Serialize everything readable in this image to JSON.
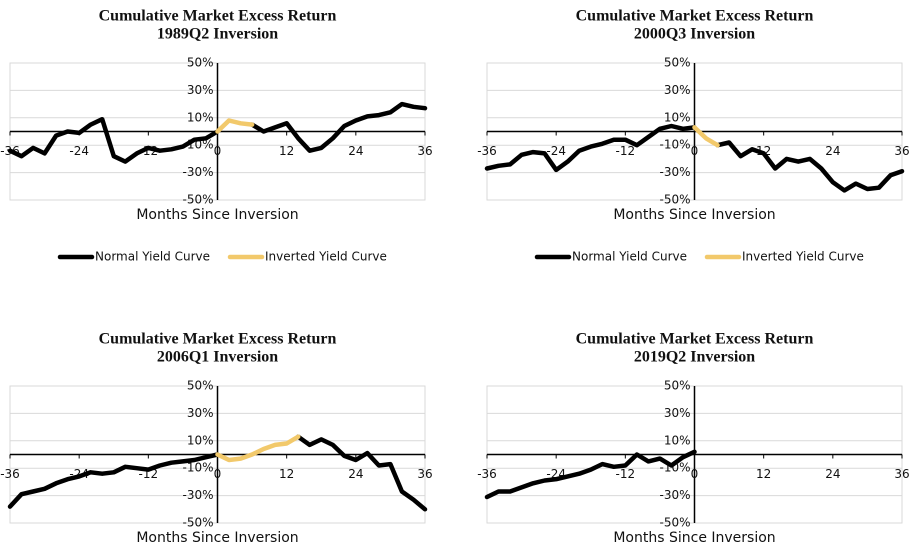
{
  "chart_data": [
    {
      "type": "line",
      "title": "Cumulative Market Excess Return",
      "subtitle": "1989Q2 Inversion",
      "xlabel": "Months Since Inversion",
      "x": [
        -36,
        -34,
        -32,
        -30,
        -28,
        -26,
        -24,
        -22,
        -20,
        -18,
        -16,
        -14,
        -12,
        -10,
        -8,
        -6,
        -4,
        -2,
        0,
        2,
        4,
        6,
        8,
        10,
        12,
        14,
        16,
        18,
        20,
        22,
        24,
        26,
        28,
        30,
        32,
        34,
        36
      ],
      "series": [
        {
          "name": "Normal Yield Curve",
          "color": "#000000",
          "values": [
            -14,
            -18,
            -12,
            -16,
            -3,
            0,
            -1,
            5,
            9,
            -18,
            -22,
            -16,
            -12,
            -14,
            -13,
            -11,
            -6,
            -5,
            0,
            null,
            null,
            5,
            0,
            3,
            6,
            -5,
            -14,
            -12,
            -5,
            4,
            8,
            11,
            12,
            14,
            20,
            18,
            17
          ]
        },
        {
          "name": "Inverted Yield Curve",
          "color": "#f2c96b",
          "values": [
            null,
            null,
            null,
            null,
            null,
            null,
            null,
            null,
            null,
            null,
            null,
            null,
            null,
            null,
            null,
            null,
            null,
            null,
            0,
            8,
            6,
            5,
            null,
            null,
            null,
            null,
            null,
            null,
            null,
            null,
            null,
            null,
            null,
            null,
            null,
            null,
            null
          ]
        }
      ],
      "xlim": [
        -36,
        36
      ],
      "xticks": [
        -36,
        -24,
        -12,
        0,
        12,
        24,
        36
      ],
      "ylim": [
        -50,
        50
      ],
      "yticks": [
        {
          "value": -50,
          "label": "-50%"
        },
        {
          "value": -30,
          "label": "-30%"
        },
        {
          "value": -10,
          "label": "-10%"
        },
        {
          "value": 10,
          "label": "10%"
        },
        {
          "value": 30,
          "label": "30%"
        },
        {
          "value": 50,
          "label": "50%"
        }
      ],
      "grid": true,
      "legend": "bottom"
    },
    {
      "type": "line",
      "title": "Cumulative Market Excess Return",
      "subtitle": "2000Q3 Inversion",
      "xlabel": "Months Since Inversion",
      "x": [
        -36,
        -34,
        -32,
        -30,
        -28,
        -26,
        -24,
        -22,
        -20,
        -18,
        -16,
        -14,
        -12,
        -10,
        -8,
        -6,
        -4,
        -2,
        0,
        2,
        4,
        6,
        8,
        10,
        12,
        14,
        16,
        18,
        20,
        22,
        24,
        26,
        28,
        30,
        32,
        34,
        36
      ],
      "series": [
        {
          "name": "Normal Yield Curve",
          "color": "#000000",
          "values": [
            -27,
            -25,
            -24,
            -17,
            -15,
            -16,
            -28,
            -22,
            -14,
            -11,
            -9,
            -6,
            -6,
            -10,
            -4,
            2,
            4,
            2,
            3,
            null,
            -10,
            -8,
            -18,
            -13,
            -16,
            -27,
            -20,
            -22,
            -20,
            -27,
            -37,
            -43,
            -38,
            -42,
            -41,
            -32,
            -29
          ]
        },
        {
          "name": "Inverted Yield Curve",
          "color": "#f2c96b",
          "values": [
            null,
            null,
            null,
            null,
            null,
            null,
            null,
            null,
            null,
            null,
            null,
            null,
            null,
            null,
            null,
            null,
            null,
            null,
            3,
            -5,
            -10,
            null,
            null,
            null,
            null,
            null,
            null,
            null,
            null,
            null,
            null,
            null,
            null,
            null,
            null,
            null,
            null
          ]
        }
      ],
      "xlim": [
        -36,
        36
      ],
      "xticks": [
        -36,
        -24,
        -12,
        0,
        12,
        24,
        36
      ],
      "ylim": [
        -50,
        50
      ],
      "yticks": [
        {
          "value": -50,
          "label": "-50%"
        },
        {
          "value": -30,
          "label": "-30%"
        },
        {
          "value": -10,
          "label": "-10%"
        },
        {
          "value": 10,
          "label": "10%"
        },
        {
          "value": 30,
          "label": "30%"
        },
        {
          "value": 50,
          "label": "50%"
        }
      ],
      "grid": true,
      "legend": "bottom"
    },
    {
      "type": "line",
      "title": "Cumulative Market Excess Return",
      "subtitle": "2006Q1 Inversion",
      "xlabel": "Months Since Inversion",
      "x": [
        -36,
        -34,
        -32,
        -30,
        -28,
        -26,
        -24,
        -22,
        -20,
        -18,
        -16,
        -14,
        -12,
        -10,
        -8,
        -6,
        -4,
        -2,
        0,
        2,
        4,
        6,
        8,
        10,
        12,
        14,
        16,
        18,
        20,
        22,
        24,
        26,
        28,
        30,
        32,
        34,
        36
      ],
      "series": [
        {
          "color": "#000000",
          "values": [
            -38,
            -29,
            -27,
            -25,
            -21,
            -18,
            -16,
            -13,
            -14,
            -13,
            -9,
            -10,
            -11,
            -8,
            -6,
            -5,
            -4,
            -2,
            0,
            null,
            null,
            null,
            null,
            null,
            null,
            13,
            7,
            11,
            7,
            -1,
            -4,
            1,
            -8,
            -7,
            -27,
            -33,
            -40
          ]
        },
        {
          "color": "#f2c96b",
          "values": [
            null,
            null,
            null,
            null,
            null,
            null,
            null,
            null,
            null,
            null,
            null,
            null,
            null,
            null,
            null,
            null,
            null,
            null,
            0,
            -4,
            -3,
            0,
            4,
            7,
            8,
            13,
            null,
            null,
            null,
            null,
            null,
            null,
            null,
            null,
            null,
            null,
            null
          ]
        }
      ],
      "xlim": [
        -36,
        36
      ],
      "xticks": [
        -36,
        -24,
        -12,
        0,
        12,
        24,
        36
      ],
      "ylim": [
        -50,
        50
      ],
      "yticks": [
        {
          "value": -50,
          "label": "-50%"
        },
        {
          "value": -30,
          "label": "-30%"
        },
        {
          "value": -10,
          "label": "-10%"
        },
        {
          "value": 10,
          "label": "10%"
        },
        {
          "value": 30,
          "label": "30%"
        },
        {
          "value": 50,
          "label": "50%"
        }
      ],
      "grid": true
    },
    {
      "type": "line",
      "title": "Cumulative Market Excess Return",
      "subtitle": "2019Q2 Inversion",
      "xlabel": "Months Since Inversion",
      "x": [
        -36,
        -34,
        -32,
        -30,
        -28,
        -26,
        -24,
        -22,
        -20,
        -18,
        -16,
        -14,
        -12,
        -10,
        -8,
        -6,
        -4,
        -2,
        0
      ],
      "series": [
        {
          "color": "#000000",
          "values": [
            -31,
            -27,
            -27,
            -24,
            -21,
            -19,
            -18,
            -16,
            -14,
            -11,
            -7,
            -9,
            -8,
            0,
            -5,
            -3,
            -8,
            -2,
            2
          ]
        }
      ],
      "xlim": [
        -36,
        36
      ],
      "xticks": [
        -36,
        -24,
        -12,
        0,
        12,
        24,
        36
      ],
      "ylim": [
        -50,
        50
      ],
      "yticks": [
        {
          "value": -50,
          "label": "-50%"
        },
        {
          "value": -30,
          "label": "-30%"
        },
        {
          "value": -10,
          "label": "-10%"
        },
        {
          "value": 10,
          "label": "10%"
        },
        {
          "value": 30,
          "label": "30%"
        },
        {
          "value": 50,
          "label": "50%"
        }
      ],
      "grid": true
    }
  ]
}
